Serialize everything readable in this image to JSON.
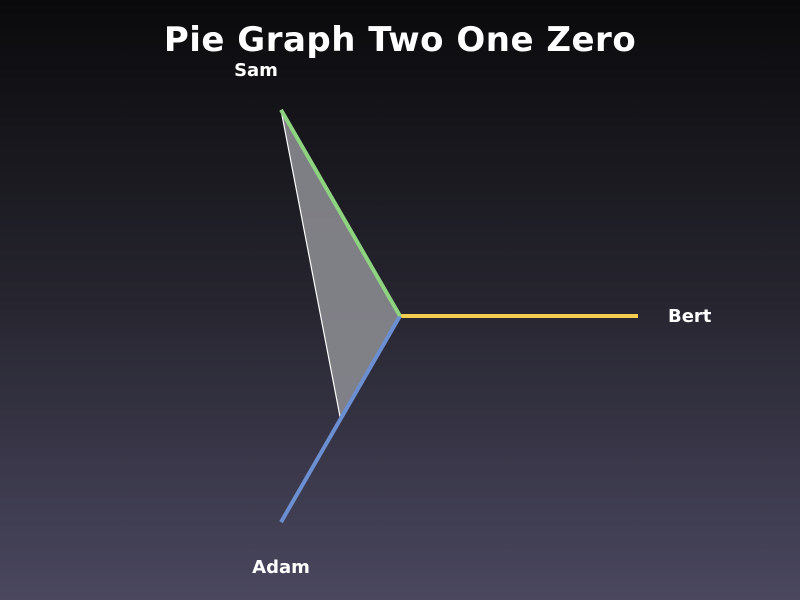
{
  "chart_data": {
    "type": "radar",
    "title": "Pie Graph Two One Zero",
    "max_value": 1,
    "axes": [
      {
        "name": "Bert",
        "color": "#f5cd4f"
      },
      {
        "name": "Adam",
        "color": "#6b8fd1"
      },
      {
        "name": "Sam",
        "color": "#8ed480"
      }
    ],
    "values": [
      0,
      0.5,
      1
    ],
    "fill_color": "#8a8990"
  }
}
